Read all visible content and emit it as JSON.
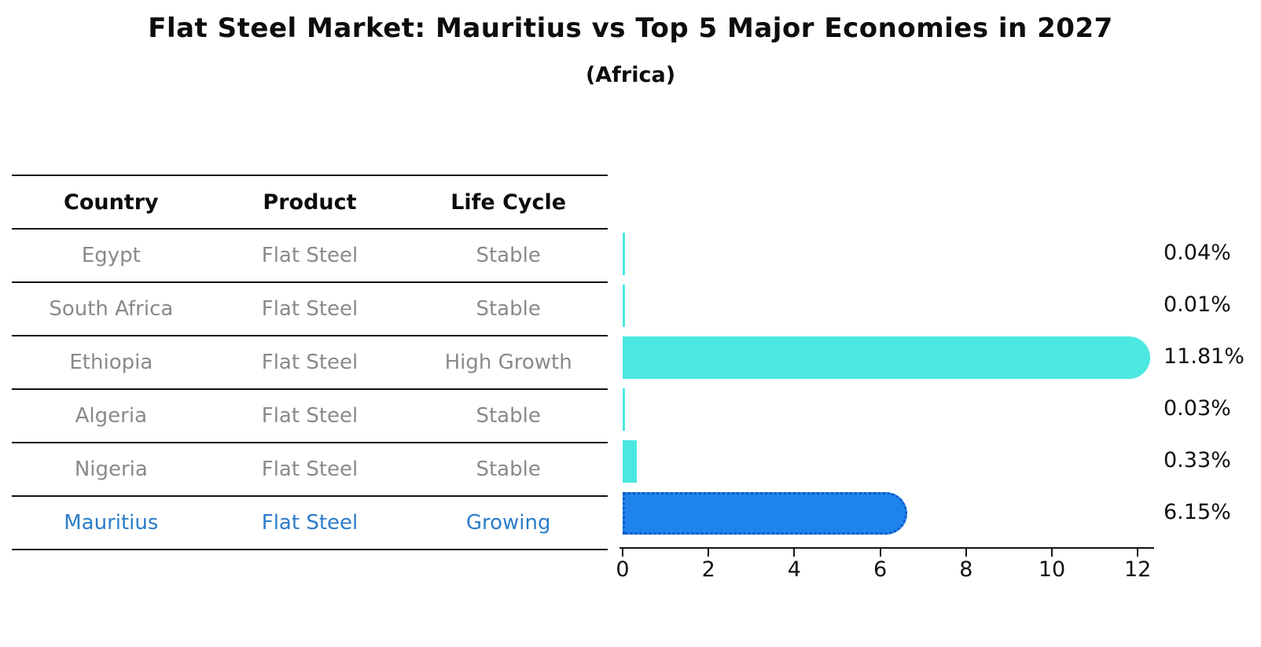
{
  "title": "Flat Steel Market: Mauritius vs Top 5 Major Economies in 2027",
  "subtitle": "(Africa)",
  "table": {
    "headers": [
      "Country",
      "Product",
      "Life Cycle"
    ],
    "rows": [
      {
        "country": "Egypt",
        "product": "Flat Steel",
        "life_cycle": "Stable",
        "highlight": false
      },
      {
        "country": "South Africa",
        "product": "Flat Steel",
        "life_cycle": "Stable",
        "highlight": false
      },
      {
        "country": "Ethiopia",
        "product": "Flat Steel",
        "life_cycle": "High Growth",
        "highlight": false
      },
      {
        "country": "Algeria",
        "product": "Flat Steel",
        "life_cycle": "Stable",
        "highlight": false
      },
      {
        "country": "Nigeria",
        "product": "Flat Steel",
        "life_cycle": "Stable",
        "highlight": false
      },
      {
        "country": "Mauritius",
        "product": "Flat Steel",
        "life_cycle": "Growing",
        "highlight": true
      }
    ]
  },
  "chart_data": {
    "type": "bar",
    "orientation": "horizontal",
    "title": "Flat Steel Market: Mauritius vs Top 5 Major Economies in 2027",
    "subtitle": "(Africa)",
    "categories": [
      "Egypt",
      "South Africa",
      "Ethiopia",
      "Algeria",
      "Nigeria",
      "Mauritius"
    ],
    "values": [
      0.04,
      0.01,
      11.81,
      0.03,
      0.33,
      6.15
    ],
    "value_labels": [
      "0.04%",
      "0.01%",
      "11.81%",
      "0.03%",
      "0.33%",
      "6.15%"
    ],
    "x_ticks": [
      0,
      2,
      4,
      6,
      8,
      10,
      12
    ],
    "xlim": [
      0,
      12.4
    ],
    "grid": false,
    "legend": "none",
    "bar_color": "#4be8e1",
    "highlight_index": 5,
    "highlight_bar_color": "#1e84eb",
    "highlight_border_color": "#1257c8",
    "highlight_text_color": "#2b7cc9",
    "text_color": "#8a8a8a",
    "header_text_color": "#0d0d0d"
  }
}
